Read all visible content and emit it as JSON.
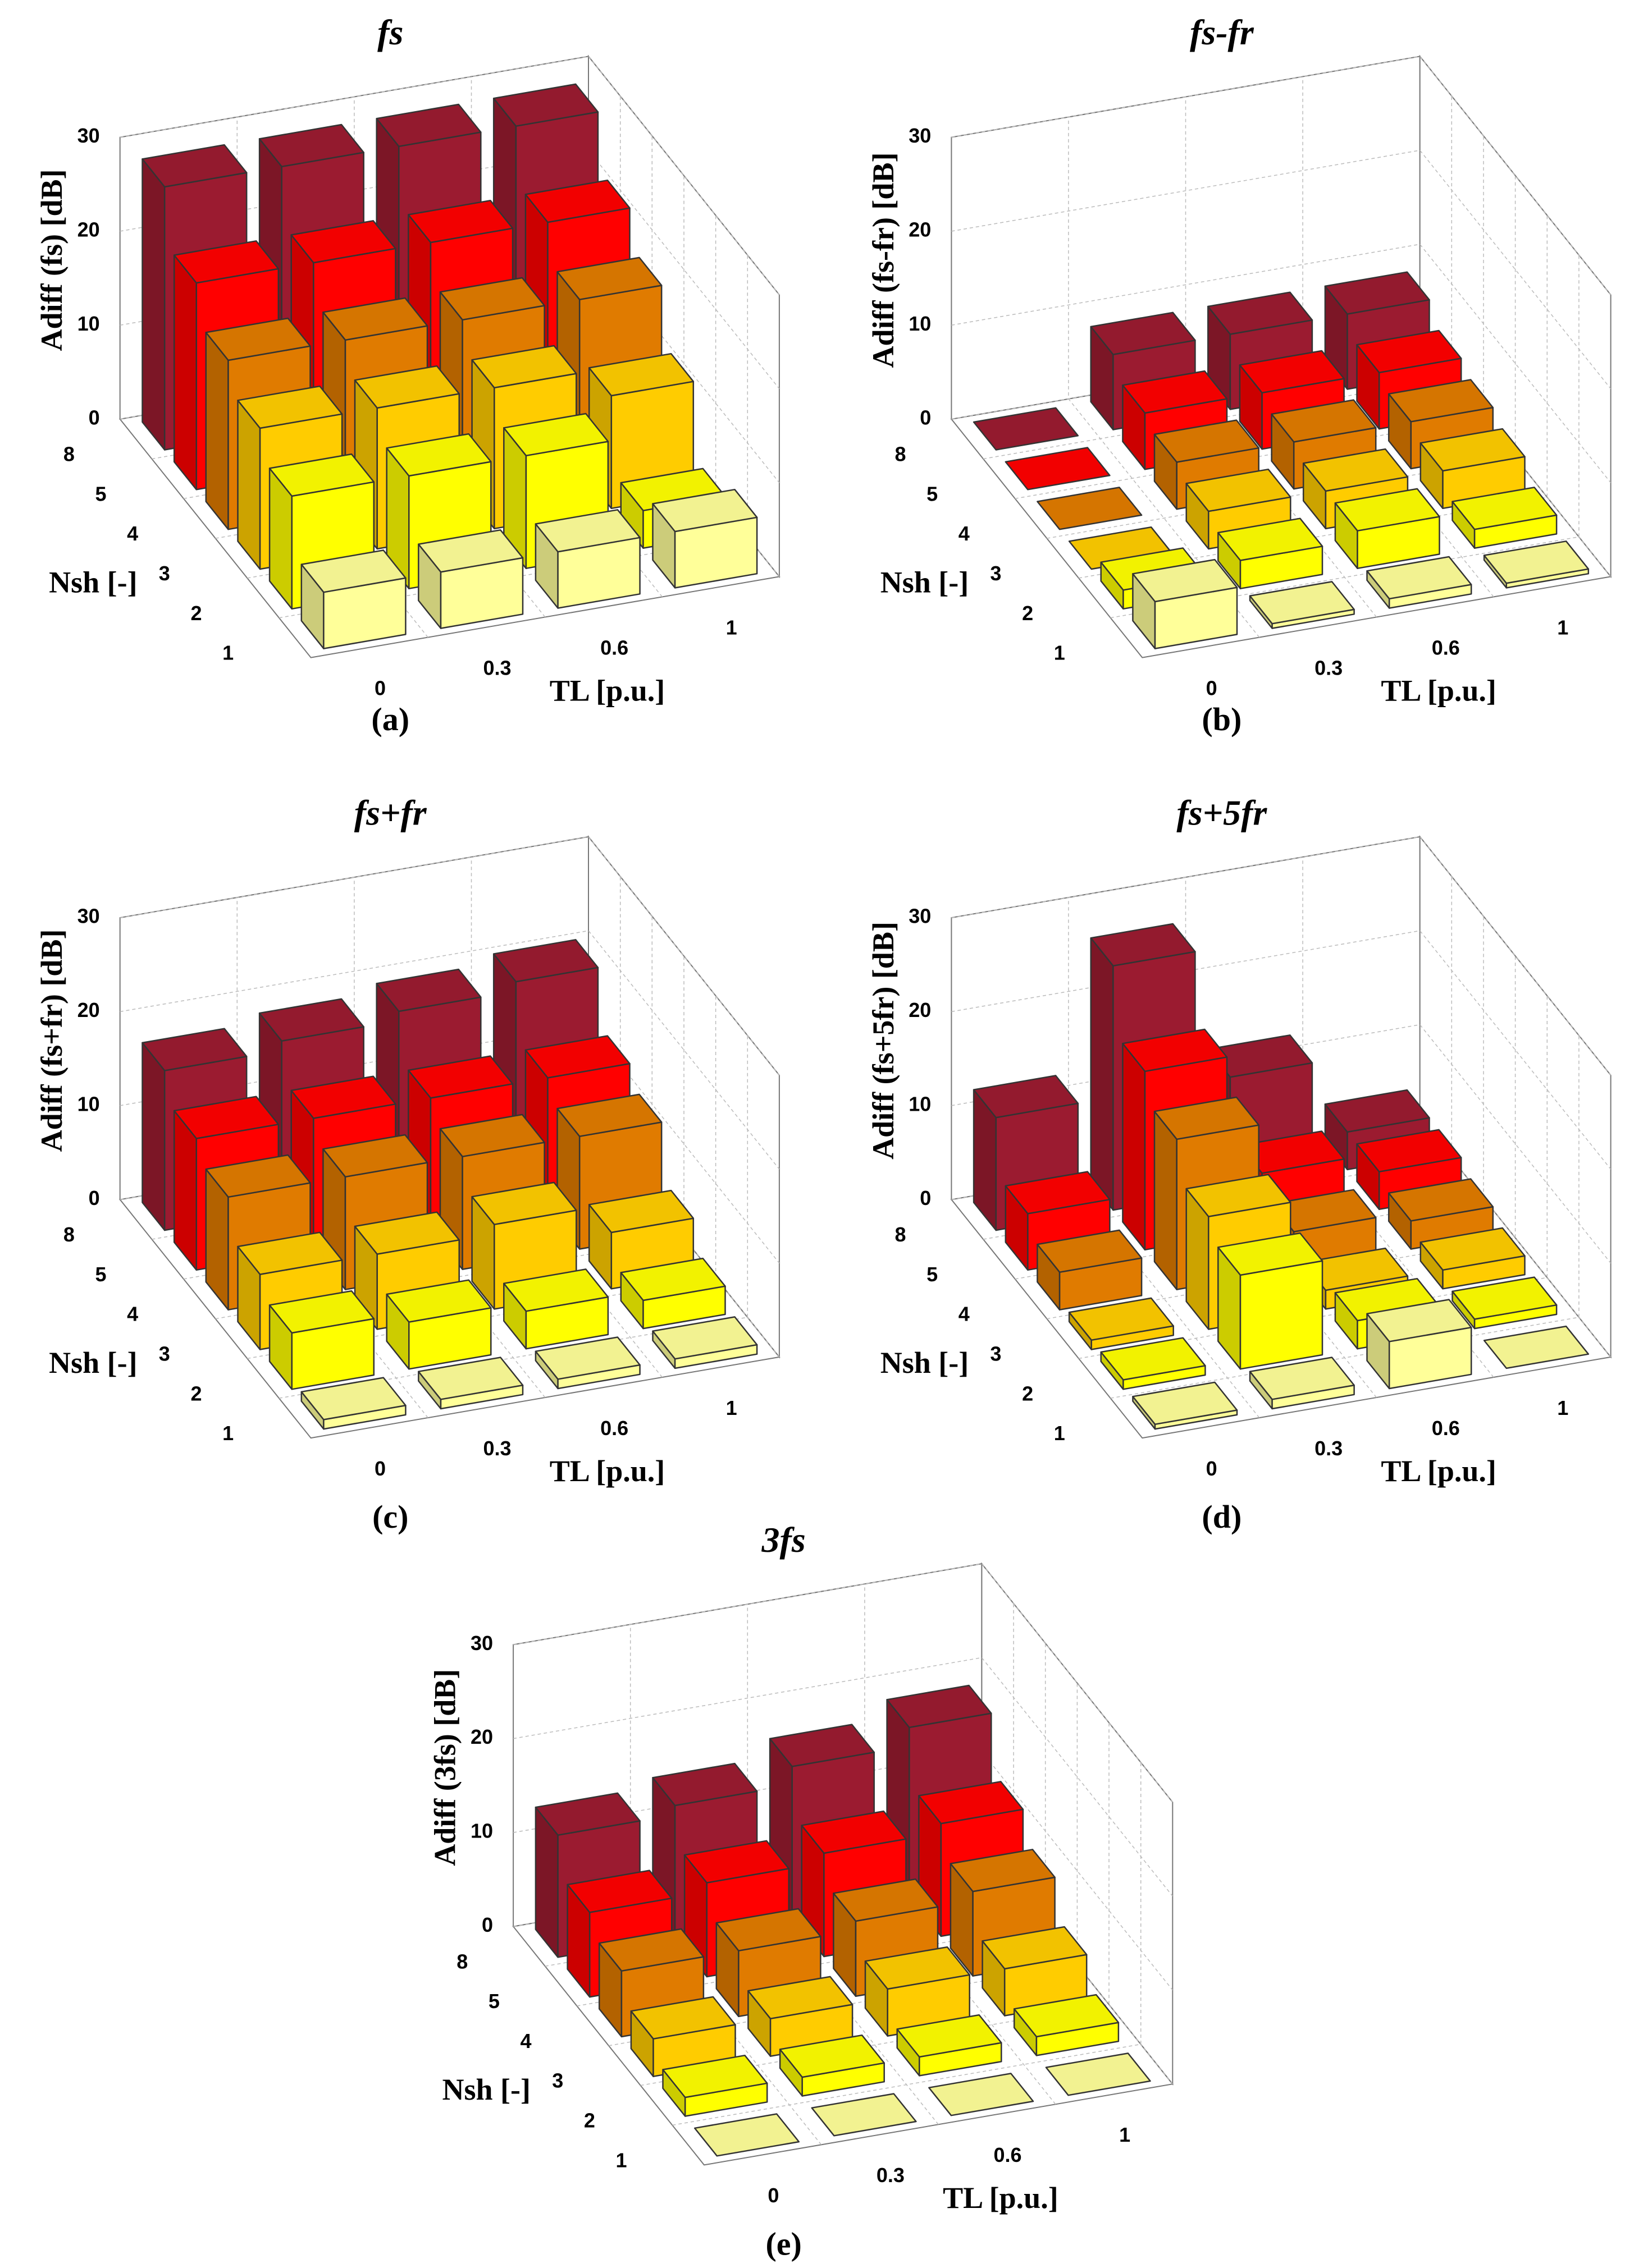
{
  "chart_data": [
    {
      "type": "bar3d",
      "title": "fs",
      "panel_label": "(a)",
      "zlabel": "Adiff (fs) [dB]",
      "xlabel": "TL [p.u.]",
      "ylabel": "Nsh [-]",
      "categories": [
        "0",
        "0.3",
        "0.6",
        "1"
      ],
      "zlim": [
        0,
        30
      ],
      "zticks": [
        0,
        10,
        20,
        30
      ],
      "grid": true,
      "series": [
        {
          "name": "1",
          "color": "#ffff99",
          "values": [
            6,
            6,
            6,
            6
          ]
        },
        {
          "name": "2",
          "color": "#ffff00",
          "values": [
            12,
            12,
            12,
            4
          ]
        },
        {
          "name": "3",
          "color": "#ffcc00",
          "values": [
            15,
            15,
            15,
            12
          ]
        },
        {
          "name": "4",
          "color": "#e07b00",
          "values": [
            18,
            18,
            18,
            18
          ]
        },
        {
          "name": "5",
          "color": "#ff0000",
          "values": [
            22,
            22,
            22,
            22
          ]
        },
        {
          "name": "8",
          "color": "#9b1b30",
          "values": [
            28,
            28,
            28,
            28
          ]
        }
      ]
    },
    {
      "type": "bar3d",
      "title": "fs-fr",
      "panel_label": "(b)",
      "zlabel": "Adiff (fs-fr) [dB]",
      "xlabel": "TL [p.u.]",
      "ylabel": "Nsh [-]",
      "categories": [
        "0",
        "0.3",
        "0.6",
        "1"
      ],
      "zlim": [
        0,
        30
      ],
      "zticks": [
        0,
        10,
        20,
        30
      ],
      "grid": true,
      "series": [
        {
          "name": "1",
          "color": "#ffff99",
          "values": [
            5,
            0.5,
            1,
            0.5
          ]
        },
        {
          "name": "2",
          "color": "#ffff00",
          "values": [
            2,
            3,
            4,
            2
          ]
        },
        {
          "name": "3",
          "color": "#ffcc00",
          "values": [
            0,
            4,
            4,
            4
          ]
        },
        {
          "name": "4",
          "color": "#e07b00",
          "values": [
            0,
            5,
            5,
            5
          ]
        },
        {
          "name": "5",
          "color": "#ff0000",
          "values": [
            0,
            6,
            6,
            6
          ]
        },
        {
          "name": "8",
          "color": "#9b1b30",
          "values": [
            0,
            8,
            8,
            8
          ]
        }
      ]
    },
    {
      "type": "bar3d",
      "title": "fs+fr",
      "panel_label": "(c)",
      "zlabel": "Adiff (fs+fr) [dB]",
      "xlabel": "TL [p.u.]",
      "ylabel": "Nsh [-]",
      "categories": [
        "0",
        "0.3",
        "0.6",
        "1"
      ],
      "zlim": [
        0,
        30
      ],
      "zticks": [
        0,
        10,
        20,
        30
      ],
      "grid": true,
      "series": [
        {
          "name": "1",
          "color": "#ffff99",
          "values": [
            1,
            1,
            1,
            1
          ]
        },
        {
          "name": "2",
          "color": "#ffff00",
          "values": [
            6,
            5,
            4,
            3
          ]
        },
        {
          "name": "3",
          "color": "#ffcc00",
          "values": [
            8,
            8,
            9,
            6
          ]
        },
        {
          "name": "4",
          "color": "#e07b00",
          "values": [
            12,
            12,
            12,
            12
          ]
        },
        {
          "name": "5",
          "color": "#ff0000",
          "values": [
            14,
            14,
            14,
            14
          ]
        },
        {
          "name": "8",
          "color": "#9b1b30",
          "values": [
            17,
            18,
            19,
            20
          ]
        }
      ]
    },
    {
      "type": "bar3d",
      "title": "fs+5fr",
      "panel_label": "(d)",
      "zlabel": "Adiff (fs+5fr) [dB]",
      "xlabel": "TL [p.u.]",
      "ylabel": "Nsh [-]",
      "categories": [
        "0",
        "0.3",
        "0.6",
        "1"
      ],
      "zlim": [
        0,
        30
      ],
      "zticks": [
        0,
        10,
        20,
        30
      ],
      "grid": true,
      "series": [
        {
          "name": "1",
          "color": "#ffff99",
          "values": [
            0.5,
            1,
            5,
            0
          ]
        },
        {
          "name": "2",
          "color": "#ffff00",
          "values": [
            1,
            10,
            3,
            1
          ]
        },
        {
          "name": "3",
          "color": "#ffcc00",
          "values": [
            1,
            12,
            2,
            2
          ]
        },
        {
          "name": "4",
          "color": "#e07b00",
          "values": [
            4,
            16,
            4,
            3
          ]
        },
        {
          "name": "5",
          "color": "#ff0000",
          "values": [
            6,
            19,
            6,
            4
          ]
        },
        {
          "name": "8",
          "color": "#9b1b30",
          "values": [
            12,
            26,
            12,
            4
          ]
        }
      ]
    },
    {
      "type": "bar3d",
      "title": "3fs",
      "panel_label": "(e)",
      "zlabel": "Adiff (3fs) [dB]",
      "xlabel": "TL [p.u.]",
      "ylabel": "Nsh [-]",
      "categories": [
        "0",
        "0.3",
        "0.6",
        "1"
      ],
      "zlim": [
        0,
        30
      ],
      "zticks": [
        0,
        10,
        20,
        30
      ],
      "grid": true,
      "series": [
        {
          "name": "1",
          "color": "#ffff99",
          "values": [
            0,
            0,
            0,
            0
          ]
        },
        {
          "name": "2",
          "color": "#ffff00",
          "values": [
            2,
            2,
            2,
            2
          ]
        },
        {
          "name": "3",
          "color": "#ffcc00",
          "values": [
            4,
            4,
            5,
            5
          ]
        },
        {
          "name": "4",
          "color": "#e07b00",
          "values": [
            7,
            7,
            8,
            9
          ]
        },
        {
          "name": "5",
          "color": "#ff0000",
          "values": [
            9,
            10,
            11,
            12
          ]
        },
        {
          "name": "8",
          "color": "#9b1b30",
          "values": [
            13,
            14,
            16,
            18
          ]
        }
      ]
    }
  ]
}
